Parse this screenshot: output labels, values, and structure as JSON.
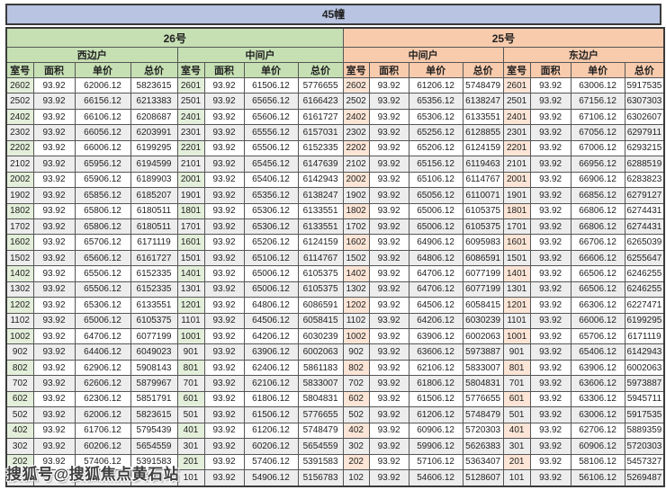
{
  "title": "45幢",
  "watermark": "搜狐号@搜狐焦点黄石站",
  "colors": {
    "banner_bg": "#b9c4e2",
    "building26_bg": "#c6e0b4",
    "building25_bg": "#f8cbad",
    "room26_tint": "#e3efda",
    "room25_tint": "#fce5d6",
    "stripe": "#ededed",
    "border": "#565656"
  },
  "table": {
    "buildings": [
      {
        "label": "26号",
        "units": [
          "西边户",
          "中间户"
        ]
      },
      {
        "label": "25号",
        "units": [
          "中间户",
          "东边户"
        ]
      }
    ],
    "column_headers": [
      "室号",
      "面积",
      "单价",
      "总价"
    ],
    "rows": [
      [
        "2602",
        "93.92",
        "62006.12",
        "5823615",
        "2601",
        "93.92",
        "61506.12",
        "5776655",
        "2602",
        "93.92",
        "61206.12",
        "5748479",
        "2601",
        "93.92",
        "63006.12",
        "5917535"
      ],
      [
        "2502",
        "93.92",
        "66156.12",
        "6213383",
        "2501",
        "93.92",
        "65656.12",
        "6166423",
        "2502",
        "93.92",
        "65356.12",
        "6138247",
        "2501",
        "93.92",
        "67156.12",
        "6307303"
      ],
      [
        "2402",
        "93.92",
        "66106.12",
        "6208687",
        "2401",
        "93.92",
        "65606.12",
        "6161727",
        "2402",
        "93.92",
        "65306.12",
        "6133551",
        "2401",
        "93.92",
        "67106.12",
        "6302607"
      ],
      [
        "2302",
        "93.92",
        "66056.12",
        "6203991",
        "2301",
        "93.92",
        "65556.12",
        "6157031",
        "2302",
        "93.92",
        "65256.12",
        "6128855",
        "2301",
        "93.92",
        "67056.12",
        "6297911"
      ],
      [
        "2202",
        "93.92",
        "66006.12",
        "6199295",
        "2201",
        "93.92",
        "65506.12",
        "6152335",
        "2202",
        "93.92",
        "65206.12",
        "6124159",
        "2201",
        "93.92",
        "67006.12",
        "6293215"
      ],
      [
        "2102",
        "93.92",
        "65956.12",
        "6194599",
        "2101",
        "93.92",
        "65456.12",
        "6147639",
        "2102",
        "93.92",
        "65156.12",
        "6119463",
        "2101",
        "93.92",
        "66956.12",
        "6288519"
      ],
      [
        "2002",
        "93.92",
        "65906.12",
        "6189903",
        "2001",
        "93.92",
        "65406.12",
        "6142943",
        "2002",
        "93.92",
        "65106.12",
        "6114767",
        "2001",
        "93.92",
        "66906.12",
        "6283823"
      ],
      [
        "1902",
        "93.92",
        "65856.12",
        "6185207",
        "1901",
        "93.92",
        "65356.12",
        "6138247",
        "1902",
        "93.92",
        "65056.12",
        "6110071",
        "1901",
        "93.92",
        "66856.12",
        "6279127"
      ],
      [
        "1802",
        "93.92",
        "65806.12",
        "6180511",
        "1801",
        "93.92",
        "65306.12",
        "6133551",
        "1802",
        "93.92",
        "65006.12",
        "6105375",
        "1801",
        "93.92",
        "66806.12",
        "6274431"
      ],
      [
        "1702",
        "93.92",
        "65806.12",
        "6180511",
        "1701",
        "93.92",
        "65306.12",
        "6133551",
        "1702",
        "93.92",
        "65006.12",
        "6105375",
        "1701",
        "93.92",
        "66806.12",
        "6274431"
      ],
      [
        "1602",
        "93.92",
        "65706.12",
        "6171119",
        "1601",
        "93.92",
        "65206.12",
        "6124159",
        "1602",
        "93.92",
        "64906.12",
        "6095983",
        "1601",
        "93.92",
        "66706.12",
        "6265039"
      ],
      [
        "1502",
        "93.92",
        "65606.12",
        "6161727",
        "1501",
        "93.92",
        "65106.12",
        "6114767",
        "1502",
        "93.92",
        "64806.12",
        "6086591",
        "1501",
        "93.92",
        "66606.12",
        "6255647"
      ],
      [
        "1402",
        "93.92",
        "65506.12",
        "6152335",
        "1401",
        "93.92",
        "65006.12",
        "6105375",
        "1402",
        "93.92",
        "64706.12",
        "6077199",
        "1401",
        "93.92",
        "66506.12",
        "6246255"
      ],
      [
        "1302",
        "93.92",
        "65506.12",
        "6152335",
        "1301",
        "93.92",
        "65006.12",
        "6105375",
        "1302",
        "93.92",
        "64706.12",
        "6077199",
        "1301",
        "93.92",
        "66506.12",
        "6246255"
      ],
      [
        "1202",
        "93.92",
        "65306.12",
        "6133551",
        "1201",
        "93.92",
        "64806.12",
        "6086591",
        "1202",
        "93.92",
        "64506.12",
        "6058415",
        "1201",
        "93.92",
        "66306.12",
        "6227471"
      ],
      [
        "1102",
        "93.92",
        "65006.12",
        "6105375",
        "1101",
        "93.92",
        "64506.12",
        "6058415",
        "1102",
        "93.92",
        "64206.12",
        "6030239",
        "1101",
        "93.92",
        "66006.12",
        "6199295"
      ],
      [
        "1002",
        "93.92",
        "64706.12",
        "6077199",
        "1001",
        "93.92",
        "64206.12",
        "6030239",
        "1002",
        "93.92",
        "63906.12",
        "6002063",
        "1001",
        "93.92",
        "65706.12",
        "6171119"
      ],
      [
        "902",
        "93.92",
        "64406.12",
        "6049023",
        "901",
        "93.92",
        "63906.12",
        "6002063",
        "902",
        "93.92",
        "63606.12",
        "5973887",
        "901",
        "93.92",
        "65406.12",
        "6142943"
      ],
      [
        "802",
        "93.92",
        "62906.12",
        "5908143",
        "801",
        "93.92",
        "62406.12",
        "5861183",
        "802",
        "93.92",
        "62106.12",
        "5833007",
        "801",
        "93.92",
        "63906.12",
        "6002063"
      ],
      [
        "702",
        "93.92",
        "62606.12",
        "5879967",
        "701",
        "93.92",
        "62106.12",
        "5833007",
        "702",
        "93.92",
        "61806.12",
        "5804831",
        "701",
        "93.92",
        "63606.12",
        "5973887"
      ],
      [
        "602",
        "93.92",
        "62306.12",
        "5851791",
        "601",
        "93.92",
        "61806.12",
        "5804831",
        "602",
        "93.92",
        "61506.12",
        "5776655",
        "601",
        "93.92",
        "63306.12",
        "5945711"
      ],
      [
        "502",
        "93.92",
        "62006.12",
        "5823615",
        "501",
        "93.92",
        "61506.12",
        "5776655",
        "502",
        "93.92",
        "61206.12",
        "5748479",
        "501",
        "93.92",
        "63006.12",
        "5917535"
      ],
      [
        "402",
        "93.92",
        "61706.12",
        "5795439",
        "401",
        "93.92",
        "61206.12",
        "5748479",
        "402",
        "93.92",
        "60906.12",
        "5720303",
        "401",
        "93.92",
        "62706.12",
        "5889359"
      ],
      [
        "302",
        "93.92",
        "60206.12",
        "5654559",
        "301",
        "93.92",
        "60206.12",
        "5654559",
        "302",
        "93.92",
        "59906.12",
        "5626383",
        "301",
        "93.92",
        "60906.12",
        "5720303"
      ],
      [
        "202",
        "93.92",
        "57406.12",
        "5391583",
        "201",
        "93.92",
        "57406.12",
        "5391583",
        "202",
        "93.92",
        "57106.12",
        "5363407",
        "201",
        "93.92",
        "58106.12",
        "5457327"
      ],
      [
        "",
        "",
        "",
        "743",
        "101",
        "93.92",
        "54906.12",
        "5156783",
        "102",
        "93.92",
        "54606.12",
        "5128607",
        "101",
        "93.92",
        "56106.12",
        "5269487"
      ]
    ]
  }
}
